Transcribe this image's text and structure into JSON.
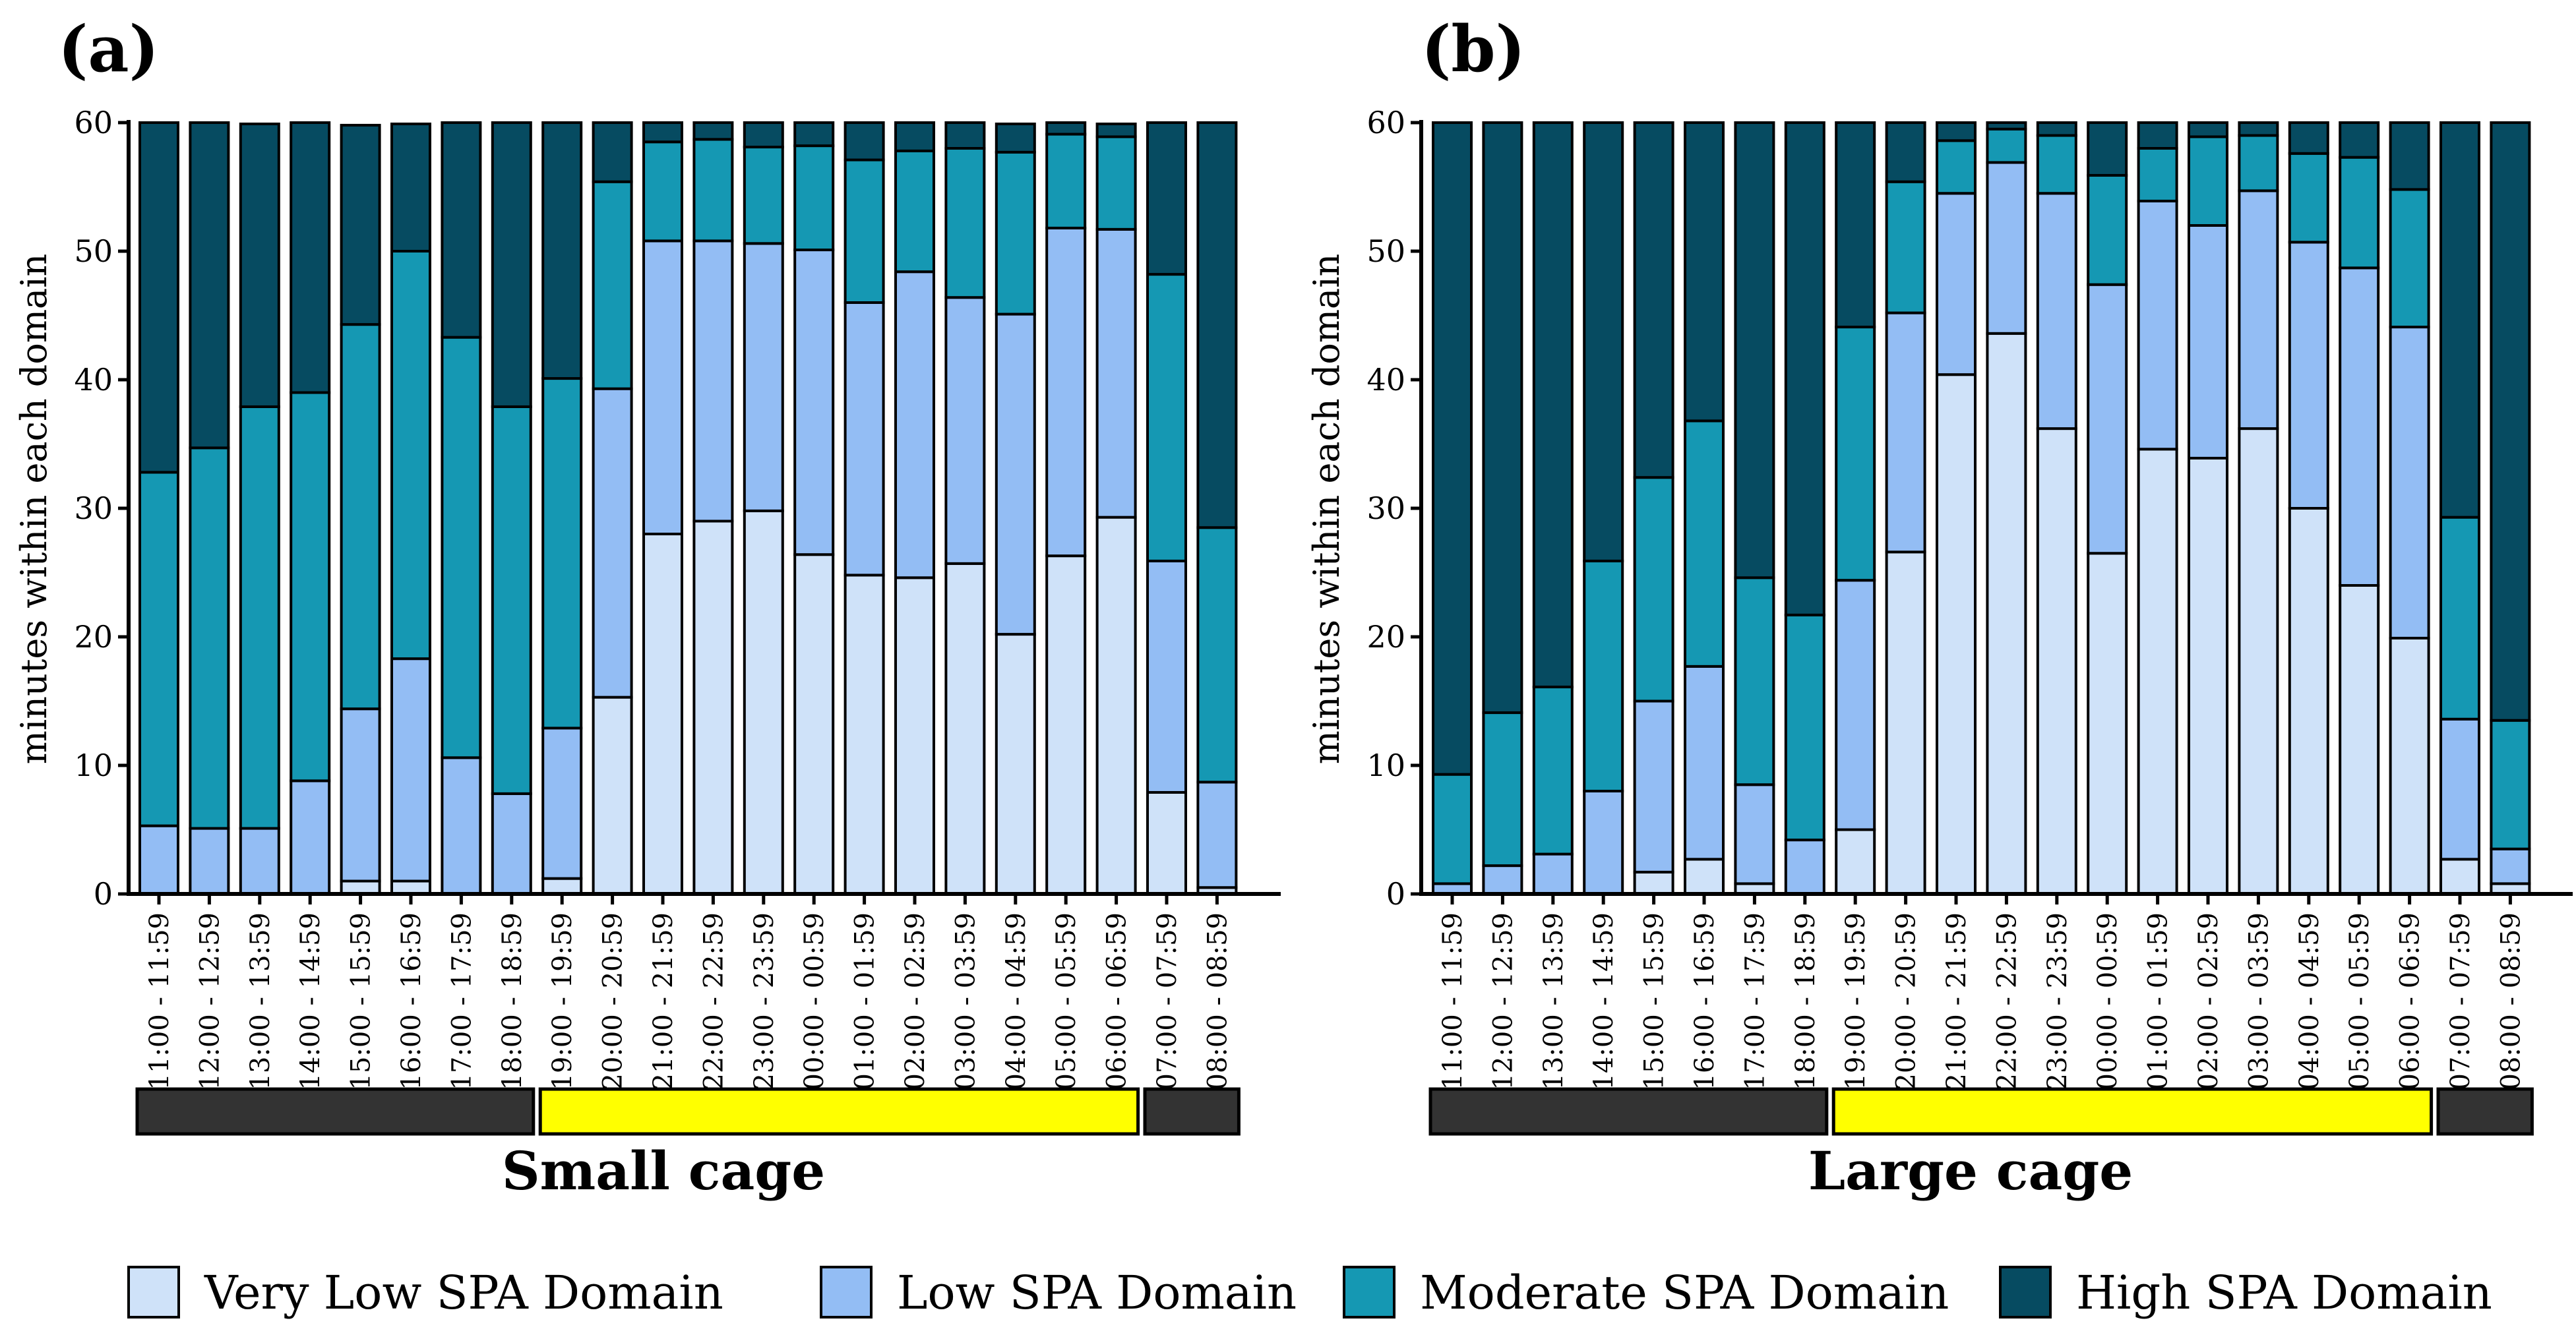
{
  "legend": [
    {
      "label": "Very Low SPA Domain",
      "color": "#cfe2f9"
    },
    {
      "label": "Low SPA Domain",
      "color": "#93bdf4"
    },
    {
      "label": "Moderate SPA Domain",
      "color": "#1598b3"
    },
    {
      "label": "High SPA Domain",
      "color": "#064b61"
    }
  ],
  "period_colors": {
    "dark": "#333333",
    "light": "#ffff00"
  },
  "chart_data": [
    {
      "type": "bar",
      "stacked": true,
      "panel_label": "(a)",
      "title": "Small cage",
      "ylabel": "minutes within each domain",
      "ylim": [
        0,
        60
      ],
      "yticks": [
        "0",
        "10",
        "20",
        "30",
        "40",
        "50",
        "60"
      ],
      "categories": [
        "11:00 - 11:59",
        "12:00 - 12:59",
        "13:00 - 13:59",
        "14:00 - 14:59",
        "15:00 - 15:59",
        "16:00 - 16:59",
        "17:00 - 17:59",
        "18:00 - 18:59",
        "19:00 - 19:59",
        "20:00 - 20:59",
        "21:00 - 21:59",
        "22:00 - 22:59",
        "23:00 - 23:59",
        "00:00 - 00:59",
        "01:00 - 01:59",
        "02:00 - 02:59",
        "03:00 - 03:59",
        "04:00 - 04:59",
        "05:00 - 05:59",
        "06:00 - 06:59",
        "07:00 - 07:59",
        "08:00 - 08:59"
      ],
      "series": [
        {
          "name": "Very Low SPA Domain",
          "values": [
            0,
            0,
            0,
            0,
            1.0,
            1.0,
            0,
            0,
            1.2,
            15.3,
            28.0,
            29.0,
            29.8,
            26.4,
            24.8,
            24.6,
            25.7,
            20.2,
            26.3,
            29.3,
            7.9,
            0.5
          ]
        },
        {
          "name": "Low SPA Domain",
          "values": [
            5.3,
            5.1,
            5.1,
            8.8,
            13.4,
            17.3,
            10.6,
            7.8,
            11.7,
            24.0,
            22.8,
            21.8,
            20.8,
            23.7,
            21.2,
            23.8,
            20.7,
            24.9,
            25.5,
            22.4,
            18.0,
            8.2
          ]
        },
        {
          "name": "Moderate SPA Domain",
          "values": [
            27.5,
            29.6,
            32.8,
            30.2,
            29.9,
            31.7,
            32.7,
            30.1,
            27.2,
            16.1,
            7.7,
            7.9,
            7.5,
            8.1,
            11.1,
            9.4,
            11.6,
            12.6,
            7.3,
            7.2,
            22.3,
            19.8
          ]
        },
        {
          "name": "High SPA Domain",
          "values": [
            27.2,
            25.3,
            22.0,
            21.0,
            15.5,
            9.9,
            16.7,
            22.1,
            19.9,
            4.6,
            1.5,
            1.3,
            1.9,
            1.8,
            2.9,
            2.2,
            2.0,
            2.2,
            0.9,
            1.0,
            11.8,
            31.5
          ]
        }
      ],
      "periods": [
        {
          "type": "dark",
          "start": 0,
          "end": 7
        },
        {
          "type": "light",
          "start": 8,
          "end": 19
        },
        {
          "type": "dark",
          "start": 20,
          "end": 21
        }
      ]
    },
    {
      "type": "bar",
      "stacked": true,
      "panel_label": "(b)",
      "title": "Large cage",
      "ylabel": "minutes within each domain",
      "ylim": [
        0,
        60
      ],
      "yticks": [
        "0",
        "10",
        "20",
        "30",
        "40",
        "50",
        "60"
      ],
      "categories": [
        "11:00 - 11:59",
        "12:00 - 12:59",
        "13:00 - 13:59",
        "14:00 - 14:59",
        "15:00 - 15:59",
        "16:00 - 16:59",
        "17:00 - 17:59",
        "18:00 - 18:59",
        "19:00 - 19:59",
        "20:00 - 20:59",
        "21:00 - 21:59",
        "22:00 - 22:59",
        "23:00 - 23:59",
        "00:00 - 00:59",
        "01:00 - 01:59",
        "02:00 - 02:59",
        "03:00 - 03:59",
        "04:00 - 04:59",
        "05:00 - 05:59",
        "06:00 - 06:59",
        "07:00 - 07:59",
        "08:00 - 08:59"
      ],
      "series": [
        {
          "name": "Very Low SPA Domain",
          "values": [
            0,
            0,
            0,
            0,
            1.7,
            2.7,
            0.8,
            0,
            5.0,
            26.6,
            40.4,
            43.6,
            36.2,
            26.5,
            34.6,
            33.9,
            36.2,
            30.0,
            24.0,
            19.9,
            2.7,
            0.8
          ]
        },
        {
          "name": "Low SPA Domain",
          "values": [
            0.8,
            2.2,
            3.1,
            8.0,
            13.3,
            15.0,
            7.7,
            4.2,
            19.4,
            18.6,
            14.1,
            13.3,
            18.3,
            20.9,
            19.3,
            18.1,
            18.5,
            20.7,
            24.7,
            24.2,
            10.9,
            2.7
          ]
        },
        {
          "name": "Moderate SPA Domain",
          "values": [
            8.5,
            11.9,
            13.0,
            17.9,
            17.4,
            19.1,
            16.1,
            17.5,
            19.7,
            10.2,
            4.1,
            2.6,
            4.5,
            8.5,
            4.1,
            6.9,
            4.3,
            6.9,
            8.6,
            10.7,
            15.7,
            10.0
          ]
        },
        {
          "name": "High SPA Domain",
          "values": [
            50.7,
            45.9,
            43.9,
            34.1,
            27.6,
            23.2,
            35.4,
            38.3,
            15.9,
            4.6,
            1.4,
            0.5,
            1.0,
            4.1,
            2.0,
            1.1,
            1.0,
            2.4,
            2.7,
            5.2,
            30.7,
            46.5
          ]
        }
      ],
      "periods": [
        {
          "type": "dark",
          "start": 0,
          "end": 7
        },
        {
          "type": "light",
          "start": 8,
          "end": 19
        },
        {
          "type": "dark",
          "start": 20,
          "end": 21
        }
      ]
    }
  ]
}
